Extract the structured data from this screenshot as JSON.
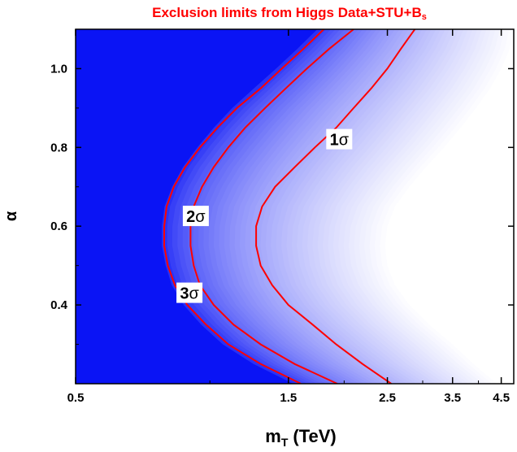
{
  "chart_data": {
    "type": "heatmap",
    "title": "Exclusion limits from Higgs Data+STU+B",
    "title_subscript": "s",
    "title_color": "#ff0000",
    "xlabel": "m",
    "xlabel_subscript": "T",
    "xlabel_units": "(TeV)",
    "ylabel": "α",
    "x_scale": "log",
    "xlim": [
      0.5,
      4.8
    ],
    "ylim": [
      0.2,
      1.1
    ],
    "x_ticks": [
      0.5,
      1.5,
      2.5,
      3.5,
      4.5
    ],
    "x_tick_labels": [
      "0.5",
      "1.5",
      "2.5",
      "3.5",
      "4.5"
    ],
    "y_ticks": [
      0.4,
      0.6,
      0.8,
      1.0
    ],
    "y_tick_labels": [
      "0.4",
      "0.6",
      "0.8",
      "1.0"
    ],
    "colors": {
      "excluded": "#0a14f5",
      "allowed": "#ffffff",
      "contour_line": "#ff0000"
    },
    "contours": [
      {
        "label": "1σ",
        "label_main": "1",
        "label_symbol": "σ",
        "label_at": [
          1.95,
          0.82
        ],
        "points": [
          [
            2.55,
            0.2
          ],
          [
            2.2,
            0.25
          ],
          [
            1.92,
            0.3
          ],
          [
            1.7,
            0.35
          ],
          [
            1.5,
            0.4
          ],
          [
            1.38,
            0.45
          ],
          [
            1.3,
            0.5
          ],
          [
            1.27,
            0.55
          ],
          [
            1.27,
            0.6
          ],
          [
            1.31,
            0.65
          ],
          [
            1.4,
            0.7
          ],
          [
            1.55,
            0.75
          ],
          [
            1.72,
            0.8
          ],
          [
            1.92,
            0.85
          ],
          [
            2.1,
            0.9
          ],
          [
            2.3,
            0.95
          ],
          [
            2.5,
            1.0
          ],
          [
            2.68,
            1.05
          ],
          [
            2.88,
            1.1
          ]
        ]
      },
      {
        "label": "2σ",
        "label_main": "2",
        "label_symbol": "σ",
        "label_at": [
          0.93,
          0.625
        ],
        "points": [
          [
            1.93,
            0.2
          ],
          [
            1.55,
            0.25
          ],
          [
            1.3,
            0.3
          ],
          [
            1.13,
            0.35
          ],
          [
            1.02,
            0.4
          ],
          [
            0.95,
            0.45
          ],
          [
            0.92,
            0.5
          ],
          [
            0.905,
            0.55
          ],
          [
            0.905,
            0.6
          ],
          [
            0.92,
            0.65
          ],
          [
            0.96,
            0.7
          ],
          [
            1.02,
            0.75
          ],
          [
            1.1,
            0.8
          ],
          [
            1.2,
            0.85
          ],
          [
            1.33,
            0.9
          ],
          [
            1.48,
            0.95
          ],
          [
            1.65,
            1.0
          ],
          [
            1.85,
            1.05
          ],
          [
            2.1,
            1.1
          ]
        ]
      },
      {
        "label": "3σ",
        "label_main": "3",
        "label_symbol": "σ",
        "label_at": [
          0.9,
          0.43
        ],
        "points": [
          [
            1.6,
            0.2
          ],
          [
            1.3,
            0.25
          ],
          [
            1.1,
            0.3
          ],
          [
            0.98,
            0.35
          ],
          [
            0.89,
            0.4
          ],
          [
            0.835,
            0.45
          ],
          [
            0.805,
            0.5
          ],
          [
            0.79,
            0.55
          ],
          [
            0.79,
            0.6
          ],
          [
            0.8,
            0.65
          ],
          [
            0.83,
            0.7
          ],
          [
            0.88,
            0.75
          ],
          [
            0.95,
            0.8
          ],
          [
            1.04,
            0.85
          ],
          [
            1.15,
            0.9
          ],
          [
            1.3,
            0.95
          ],
          [
            1.45,
            1.0
          ],
          [
            1.62,
            1.05
          ],
          [
            1.8,
            1.1
          ]
        ]
      }
    ],
    "fill_boundary_outer": [
      [
        1.5,
        0.2
      ],
      [
        1.22,
        0.25
      ],
      [
        1.04,
        0.3
      ],
      [
        0.93,
        0.35
      ],
      [
        0.85,
        0.4
      ],
      [
        0.8,
        0.45
      ],
      [
        0.775,
        0.5
      ],
      [
        0.76,
        0.55
      ],
      [
        0.76,
        0.6
      ],
      [
        0.77,
        0.65
      ],
      [
        0.8,
        0.7
      ],
      [
        0.845,
        0.75
      ],
      [
        0.91,
        0.8
      ],
      [
        0.99,
        0.85
      ],
      [
        1.09,
        0.9
      ],
      [
        1.22,
        0.95
      ],
      [
        1.37,
        1.0
      ],
      [
        1.53,
        1.05
      ],
      [
        1.7,
        1.1
      ]
    ],
    "fill_boundary_inner": [
      [
        4.4,
        0.2
      ],
      [
        3.9,
        0.25
      ],
      [
        3.5,
        0.3
      ],
      [
        3.1,
        0.35
      ],
      [
        2.8,
        0.4
      ],
      [
        2.6,
        0.45
      ],
      [
        2.5,
        0.5
      ],
      [
        2.47,
        0.55
      ],
      [
        2.5,
        0.6
      ],
      [
        2.6,
        0.65
      ],
      [
        2.8,
        0.7
      ],
      [
        3.05,
        0.75
      ],
      [
        3.35,
        0.8
      ],
      [
        3.65,
        0.85
      ],
      [
        3.95,
        0.9
      ],
      [
        4.25,
        0.95
      ],
      [
        4.5,
        1.0
      ],
      [
        4.7,
        1.05
      ],
      [
        4.8,
        1.1
      ]
    ],
    "grid": false,
    "legend": "none"
  }
}
